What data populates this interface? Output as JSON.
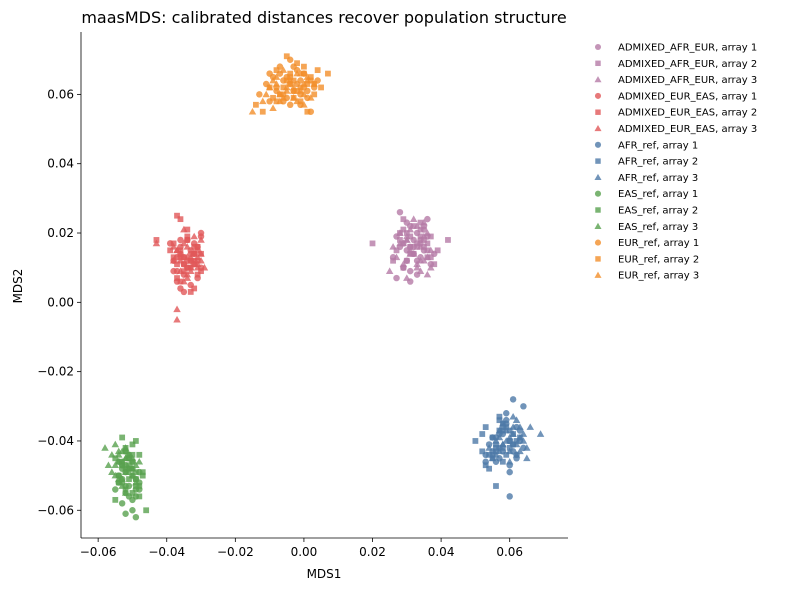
{
  "chart_data": {
    "type": "scatter",
    "title": "maasMDS: calibrated distances recover population structure",
    "xlabel": "MDS1",
    "ylabel": "MDS2",
    "xlim": [
      -0.065,
      0.077
    ],
    "ylim": [
      -0.068,
      0.078
    ],
    "xticks": [
      -0.06,
      -0.04,
      -0.02,
      0.0,
      0.02,
      0.04,
      0.06
    ],
    "xtick_labels": [
      "−0.06",
      "−0.04",
      "−0.02",
      "0.00",
      "0.02",
      "0.04",
      "0.06"
    ],
    "yticks": [
      -0.06,
      -0.04,
      -0.02,
      0.0,
      0.02,
      0.04,
      0.06
    ],
    "ytick_labels": [
      "−0.06",
      "−0.04",
      "−0.02",
      "0.00",
      "0.02",
      "0.04",
      "0.06"
    ],
    "grid": false,
    "legend_position": "outside-top-right",
    "colors": {
      "ADMIXED_AFR_EUR": "#b57ba6",
      "ADMIXED_EUR_EAS": "#e15759",
      "AFR_ref": "#4e79a7",
      "EAS_ref": "#59a14f",
      "EUR_ref": "#f28e2b"
    },
    "markers": {
      "array 1": "circle",
      "array 2": "square",
      "array 3": "triangle"
    },
    "legend": [
      "ADMIXED_AFR_EUR, array 1",
      "ADMIXED_AFR_EUR, array 2",
      "ADMIXED_AFR_EUR, array 3",
      "ADMIXED_EUR_EAS, array 1",
      "ADMIXED_EUR_EAS, array 2",
      "ADMIXED_EUR_EAS, array 3",
      "AFR_ref, array 1",
      "AFR_ref, array 2",
      "AFR_ref, array 3",
      "EAS_ref, array 1",
      "EAS_ref, array 2",
      "EAS_ref, array 3",
      "EUR_ref, array 1",
      "EUR_ref, array 2",
      "EUR_ref, array 3"
    ],
    "series": [
      {
        "name": "ADMIXED_AFR_EUR, array 1",
        "group": "ADMIXED_AFR_EUR",
        "marker": "circle",
        "x": [
          0.028,
          0.031,
          0.034,
          0.03,
          0.036,
          0.033,
          0.027,
          0.032,
          0.035,
          0.029,
          0.038,
          0.031,
          0.034,
          0.026,
          0.033,
          0.03,
          0.037,
          0.032,
          0.028,
          0.035,
          0.031,
          0.034,
          0.029,
          0.036,
          0.033,
          0.03,
          0.032,
          0.027,
          0.035,
          0.031
        ],
        "y": [
          0.026,
          0.022,
          0.018,
          0.015,
          0.024,
          0.012,
          0.019,
          0.016,
          0.021,
          0.01,
          0.014,
          0.009,
          0.017,
          0.013,
          0.02,
          0.023,
          0.011,
          0.018,
          0.016,
          0.015,
          0.006,
          0.013,
          0.017,
          0.019,
          0.008,
          0.012,
          0.014,
          0.007,
          0.022,
          0.016
        ]
      },
      {
        "name": "ADMIXED_AFR_EUR, array 2",
        "group": "ADMIXED_AFR_EUR",
        "marker": "square",
        "x": [
          0.02,
          0.042,
          0.029,
          0.037,
          0.031,
          0.034,
          0.026,
          0.039,
          0.032,
          0.035,
          0.028,
          0.036,
          0.03,
          0.033,
          0.038,
          0.027,
          0.031,
          0.034,
          0.029,
          0.036,
          0.032,
          0.035,
          0.03,
          0.033,
          0.028,
          0.037,
          0.031,
          0.034,
          0.029,
          0.036
        ],
        "y": [
          0.017,
          0.018,
          0.024,
          0.019,
          0.014,
          0.021,
          0.012,
          0.015,
          0.022,
          0.016,
          0.018,
          0.013,
          0.02,
          0.017,
          0.011,
          0.015,
          0.019,
          0.023,
          0.01,
          0.017,
          0.014,
          0.018,
          0.012,
          0.016,
          0.02,
          0.013,
          0.016,
          0.019,
          0.021,
          0.015
        ]
      },
      {
        "name": "ADMIXED_AFR_EUR, array 3",
        "group": "ADMIXED_AFR_EUR",
        "marker": "triangle",
        "x": [
          0.025,
          0.03,
          0.033,
          0.027,
          0.036,
          0.031,
          0.034,
          0.029,
          0.037,
          0.032,
          0.026,
          0.035,
          0.03,
          0.033,
          0.028,
          0.036,
          0.031,
          0.034,
          0.029,
          0.037,
          0.032,
          0.035,
          0.03,
          0.033,
          0.028,
          0.036,
          0.031,
          0.034,
          0.03,
          0.035
        ],
        "y": [
          0.009,
          0.007,
          0.011,
          0.013,
          0.008,
          0.015,
          0.012,
          0.017,
          0.01,
          0.014,
          0.016,
          0.019,
          0.018,
          0.022,
          0.02,
          0.013,
          0.021,
          0.016,
          0.011,
          0.015,
          0.024,
          0.012,
          0.019,
          0.01,
          0.017,
          0.02,
          0.014,
          0.009,
          0.018,
          0.023
        ]
      },
      {
        "name": "ADMIXED_EUR_EAS, array 1",
        "group": "ADMIXED_EUR_EAS",
        "marker": "circle",
        "x": [
          -0.039,
          -0.036,
          -0.033,
          -0.038,
          -0.031,
          -0.035,
          -0.037,
          -0.03,
          -0.034,
          -0.036,
          -0.032,
          -0.038,
          -0.035,
          -0.03,
          -0.033,
          -0.037,
          -0.034,
          -0.031,
          -0.036,
          -0.032,
          -0.035,
          -0.033,
          -0.03,
          -0.036,
          -0.034,
          -0.031,
          -0.037,
          -0.033,
          -0.035,
          -0.032
        ],
        "y": [
          0.017,
          0.014,
          0.012,
          0.009,
          0.016,
          0.011,
          0.006,
          0.019,
          0.01,
          0.004,
          0.014,
          0.012,
          0.008,
          0.02,
          0.015,
          0.013,
          0.018,
          0.007,
          0.016,
          0.011,
          0.003,
          0.014,
          0.01,
          0.018,
          0.012,
          0.015,
          0.009,
          0.005,
          0.013,
          0.017
        ]
      },
      {
        "name": "ADMIXED_EUR_EAS, array 2",
        "group": "ADMIXED_EUR_EAS",
        "marker": "square",
        "x": [
          -0.043,
          -0.037,
          -0.036,
          -0.039,
          -0.034,
          -0.031,
          -0.035,
          -0.038,
          -0.032,
          -0.036,
          -0.033,
          -0.03,
          -0.037,
          -0.034,
          -0.032,
          -0.035,
          -0.031,
          -0.038,
          -0.033,
          -0.036,
          -0.03,
          -0.034,
          -0.037,
          -0.032,
          -0.035,
          -0.033,
          -0.031,
          -0.036,
          -0.034,
          -0.032
        ],
        "y": [
          0.018,
          0.025,
          0.024,
          0.015,
          0.019,
          0.012,
          0.009,
          0.013,
          0.016,
          0.006,
          0.01,
          0.014,
          0.011,
          0.021,
          0.004,
          0.013,
          0.008,
          0.017,
          0.012,
          0.015,
          0.009,
          0.018,
          0.007,
          0.014,
          0.011,
          0.003,
          0.016,
          0.013,
          0.01,
          0.012
        ]
      },
      {
        "name": "ADMIXED_EUR_EAS, array 3",
        "group": "ADMIXED_EUR_EAS",
        "marker": "triangle",
        "x": [
          -0.037,
          -0.037,
          -0.043,
          -0.029,
          -0.035,
          -0.032,
          -0.038,
          -0.034,
          -0.03,
          -0.036,
          -0.033,
          -0.031,
          -0.037,
          -0.034,
          -0.032,
          -0.036,
          -0.03,
          -0.035,
          -0.033,
          -0.038,
          -0.031,
          -0.034,
          -0.036,
          -0.032,
          -0.035,
          -0.03,
          -0.033,
          -0.037,
          -0.034,
          -0.031
        ],
        "y": [
          -0.002,
          -0.005,
          0.017,
          0.01,
          0.021,
          0.014,
          0.012,
          0.016,
          0.018,
          0.009,
          0.013,
          0.011,
          0.015,
          0.007,
          0.019,
          0.012,
          0.014,
          0.006,
          0.01,
          0.016,
          0.013,
          0.008,
          0.014,
          0.011,
          0.017,
          0.012,
          0.009,
          0.015,
          0.013,
          0.01
        ]
      },
      {
        "name": "AFR_ref, array 1",
        "group": "AFR_ref",
        "marker": "circle",
        "x": [
          0.06,
          0.058,
          0.062,
          0.055,
          0.064,
          0.057,
          0.06,
          0.053,
          0.061,
          0.056,
          0.063,
          0.059,
          0.054,
          0.062,
          0.058,
          0.06,
          0.055,
          0.063,
          0.057,
          0.061,
          0.059,
          0.056,
          0.064,
          0.058,
          0.06,
          0.053,
          0.062,
          0.057,
          0.059,
          0.061
        ],
        "y": [
          -0.056,
          -0.043,
          -0.045,
          -0.039,
          -0.03,
          -0.042,
          -0.047,
          -0.044,
          -0.028,
          -0.046,
          -0.04,
          -0.035,
          -0.041,
          -0.036,
          -0.038,
          -0.049,
          -0.043,
          -0.037,
          -0.045,
          -0.041,
          -0.034,
          -0.039,
          -0.042,
          -0.036,
          -0.04,
          -0.046,
          -0.044,
          -0.038,
          -0.032,
          -0.043
        ]
      },
      {
        "name": "AFR_ref, array 2",
        "group": "AFR_ref",
        "marker": "square",
        "x": [
          0.05,
          0.053,
          0.056,
          0.058,
          0.054,
          0.057,
          0.06,
          0.055,
          0.052,
          0.058,
          0.061,
          0.056,
          0.053,
          0.059,
          0.062,
          0.057,
          0.055,
          0.06,
          0.058,
          0.054,
          0.063,
          0.056,
          0.059,
          0.052,
          0.061,
          0.057,
          0.055,
          0.06,
          0.058,
          0.056
        ],
        "y": [
          -0.04,
          -0.047,
          -0.053,
          -0.035,
          -0.044,
          -0.037,
          -0.042,
          -0.039,
          -0.043,
          -0.046,
          -0.038,
          -0.041,
          -0.036,
          -0.044,
          -0.04,
          -0.034,
          -0.045,
          -0.037,
          -0.042,
          -0.048,
          -0.039,
          -0.043,
          -0.036,
          -0.038,
          -0.041,
          -0.033,
          -0.044,
          -0.04,
          -0.037,
          -0.042
        ]
      },
      {
        "name": "AFR_ref, array 3",
        "group": "AFR_ref",
        "marker": "triangle",
        "x": [
          0.064,
          0.066,
          0.069,
          0.062,
          0.065,
          0.058,
          0.061,
          0.057,
          0.063,
          0.06,
          0.054,
          0.059,
          0.062,
          0.056,
          0.064,
          0.058,
          0.061,
          0.055,
          0.063,
          0.06,
          0.057,
          0.065,
          0.059,
          0.062,
          0.056,
          0.061,
          0.058,
          0.063,
          0.06,
          0.057
        ],
        "y": [
          -0.04,
          -0.036,
          -0.038,
          -0.041,
          -0.045,
          -0.035,
          -0.033,
          -0.043,
          -0.039,
          -0.046,
          -0.042,
          -0.037,
          -0.044,
          -0.04,
          -0.038,
          -0.041,
          -0.036,
          -0.045,
          -0.043,
          -0.039,
          -0.037,
          -0.042,
          -0.04,
          -0.034,
          -0.044,
          -0.038,
          -0.041,
          -0.036,
          -0.043,
          -0.039
        ]
      },
      {
        "name": "EAS_ref, array 1",
        "group": "EAS_ref",
        "marker": "circle",
        "x": [
          -0.055,
          -0.052,
          -0.05,
          -0.053,
          -0.049,
          -0.054,
          -0.051,
          -0.048,
          -0.052,
          -0.05,
          -0.053,
          -0.051,
          -0.049,
          -0.054,
          -0.052,
          -0.05,
          -0.048,
          -0.053,
          -0.051,
          -0.049,
          -0.052,
          -0.054,
          -0.05,
          -0.052,
          -0.048,
          -0.051,
          -0.053,
          -0.049,
          -0.05,
          -0.052
        ],
        "y": [
          -0.054,
          -0.061,
          -0.06,
          -0.058,
          -0.062,
          -0.052,
          -0.056,
          -0.054,
          -0.049,
          -0.057,
          -0.047,
          -0.053,
          -0.051,
          -0.046,
          -0.055,
          -0.05,
          -0.052,
          -0.048,
          -0.044,
          -0.056,
          -0.043,
          -0.05,
          -0.046,
          -0.053,
          -0.049,
          -0.045,
          -0.051,
          -0.054,
          -0.048,
          -0.047
        ]
      },
      {
        "name": "EAS_ref, array 2",
        "group": "EAS_ref",
        "marker": "square",
        "x": [
          -0.053,
          -0.05,
          -0.049,
          -0.046,
          -0.055,
          -0.052,
          -0.048,
          -0.051,
          -0.054,
          -0.05,
          -0.047,
          -0.053,
          -0.051,
          -0.049,
          -0.055,
          -0.052,
          -0.048,
          -0.05,
          -0.053,
          -0.047,
          -0.051,
          -0.049,
          -0.054,
          -0.052,
          -0.05,
          -0.048,
          -0.053,
          -0.051,
          -0.049,
          -0.052
        ],
        "y": [
          -0.039,
          -0.041,
          -0.04,
          -0.06,
          -0.045,
          -0.043,
          -0.044,
          -0.047,
          -0.05,
          -0.046,
          -0.049,
          -0.052,
          -0.048,
          -0.051,
          -0.057,
          -0.054,
          -0.053,
          -0.055,
          -0.047,
          -0.05,
          -0.045,
          -0.049,
          -0.052,
          -0.048,
          -0.044,
          -0.056,
          -0.046,
          -0.051,
          -0.053,
          -0.042
        ]
      },
      {
        "name": "EAS_ref, array 3",
        "group": "EAS_ref",
        "marker": "triangle",
        "x": [
          -0.058,
          -0.056,
          -0.054,
          -0.057,
          -0.052,
          -0.055,
          -0.05,
          -0.053,
          -0.056,
          -0.051,
          -0.054,
          -0.049,
          -0.052,
          -0.055,
          -0.05,
          -0.053,
          -0.051,
          -0.048,
          -0.054,
          -0.052,
          -0.049,
          -0.055,
          -0.053,
          -0.05,
          -0.052,
          -0.054,
          -0.051,
          -0.053,
          -0.05,
          -0.052
        ],
        "y": [
          -0.042,
          -0.044,
          -0.043,
          -0.047,
          -0.045,
          -0.041,
          -0.048,
          -0.046,
          -0.049,
          -0.044,
          -0.051,
          -0.047,
          -0.042,
          -0.05,
          -0.045,
          -0.053,
          -0.048,
          -0.046,
          -0.044,
          -0.049,
          -0.052,
          -0.047,
          -0.043,
          -0.05,
          -0.055,
          -0.046,
          -0.049,
          -0.051,
          -0.048,
          -0.045
        ]
      },
      {
        "name": "EUR_ref, array 1",
        "group": "EUR_ref",
        "marker": "circle",
        "x": [
          -0.013,
          -0.01,
          -0.007,
          -0.004,
          -0.001,
          0.003,
          -0.008,
          -0.005,
          -0.002,
          0.001,
          -0.011,
          -0.006,
          -0.003,
          0.0,
          0.002,
          -0.009,
          -0.004,
          -0.001,
          0.004,
          -0.007,
          -0.002,
          0.001,
          -0.005,
          -0.01,
          -0.003,
          0.0,
          -0.006,
          -0.008,
          -0.004,
          -0.001
        ],
        "y": [
          0.06,
          0.066,
          0.068,
          0.07,
          0.064,
          0.062,
          0.062,
          0.065,
          0.067,
          0.059,
          0.063,
          0.058,
          0.061,
          0.066,
          0.055,
          0.065,
          0.057,
          0.06,
          0.064,
          0.066,
          0.063,
          0.061,
          0.059,
          0.058,
          0.068,
          0.062,
          0.064,
          0.061,
          0.063,
          0.057
        ]
      },
      {
        "name": "EUR_ref, array 2",
        "group": "EUR_ref",
        "marker": "square",
        "x": [
          -0.012,
          -0.014,
          -0.008,
          -0.005,
          -0.002,
          0.001,
          0.004,
          0.007,
          -0.006,
          -0.003,
          0.0,
          0.003,
          -0.009,
          -0.004,
          -0.001,
          0.002,
          0.005,
          -0.007,
          -0.002,
          0.001,
          -0.005,
          -0.01,
          -0.003,
          0.0,
          0.003,
          -0.006,
          -0.008,
          -0.004,
          -0.001,
          0.002
        ],
        "y": [
          0.055,
          0.057,
          0.067,
          0.071,
          0.069,
          0.055,
          0.067,
          0.066,
          0.062,
          0.064,
          0.068,
          0.06,
          0.059,
          0.066,
          0.058,
          0.065,
          0.062,
          0.06,
          0.061,
          0.063,
          0.064,
          0.062,
          0.059,
          0.066,
          0.063,
          0.06,
          0.058,
          0.065,
          0.062,
          0.064
        ]
      },
      {
        "name": "EUR_ref, array 3",
        "group": "EUR_ref",
        "marker": "triangle",
        "x": [
          -0.015,
          -0.012,
          -0.009,
          -0.006,
          -0.003,
          0.0,
          0.003,
          -0.01,
          -0.007,
          -0.004,
          -0.001,
          0.002,
          -0.008,
          -0.005,
          -0.002,
          0.001,
          -0.011,
          -0.006,
          -0.003,
          0.0,
          -0.009,
          -0.004,
          -0.001,
          -0.007,
          -0.002,
          0.001,
          -0.005,
          -0.003,
          -0.008,
          0.0
        ],
        "y": [
          0.055,
          0.058,
          0.056,
          0.059,
          0.061,
          0.057,
          0.063,
          0.062,
          0.06,
          0.064,
          0.066,
          0.059,
          0.063,
          0.061,
          0.058,
          0.065,
          0.06,
          0.067,
          0.062,
          0.06,
          0.064,
          0.063,
          0.061,
          0.058,
          0.066,
          0.064,
          0.062,
          0.059,
          0.065,
          0.063
        ]
      }
    ]
  }
}
